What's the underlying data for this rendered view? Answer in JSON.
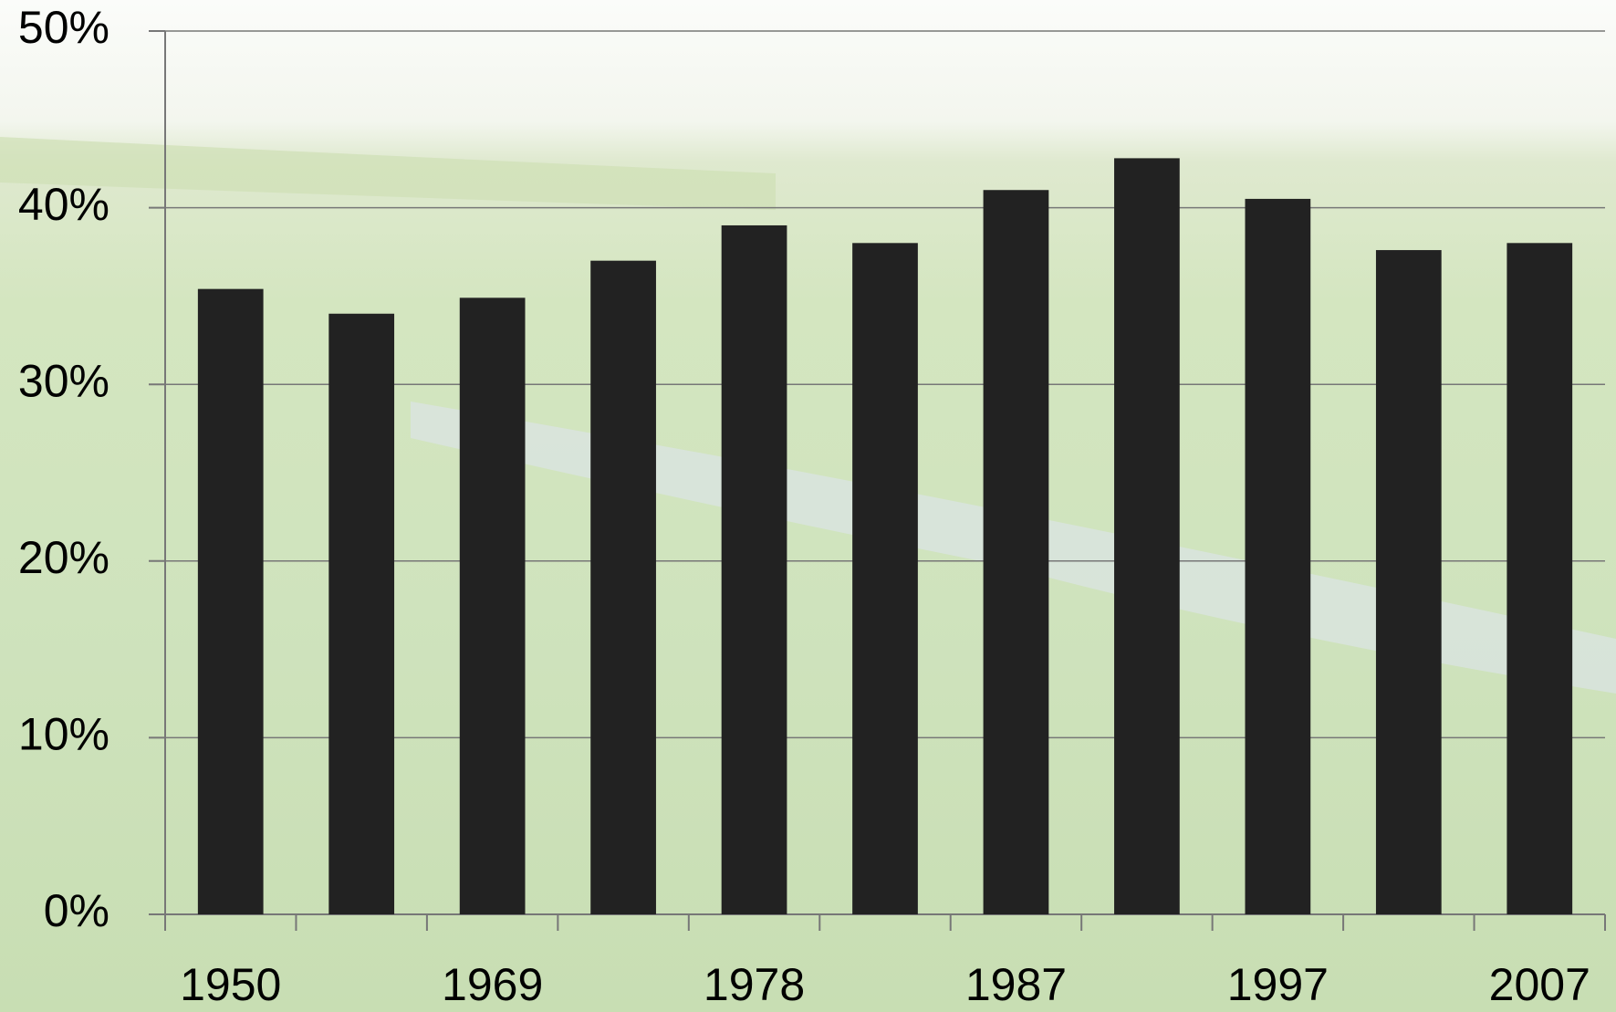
{
  "chart_data": {
    "type": "bar",
    "categories": [
      "1950",
      null,
      "1969",
      null,
      "1978",
      null,
      "1987",
      null,
      "1997",
      null,
      "2007"
    ],
    "values": [
      35.4,
      34.0,
      34.9,
      37.0,
      39.0,
      38.0,
      41.0,
      42.8,
      40.5,
      37.6,
      38.0
    ],
    "color": "#222222",
    "ylim": [
      0,
      50
    ],
    "yticks": [
      {
        "value": 0,
        "label": "0%"
      },
      {
        "value": 10,
        "label": "10%"
      },
      {
        "value": 20,
        "label": "20%"
      },
      {
        "value": 30,
        "label": "30%"
      },
      {
        "value": 40,
        "label": "40%"
      },
      {
        "value": 50,
        "label": "50%"
      }
    ],
    "grid": true
  }
}
